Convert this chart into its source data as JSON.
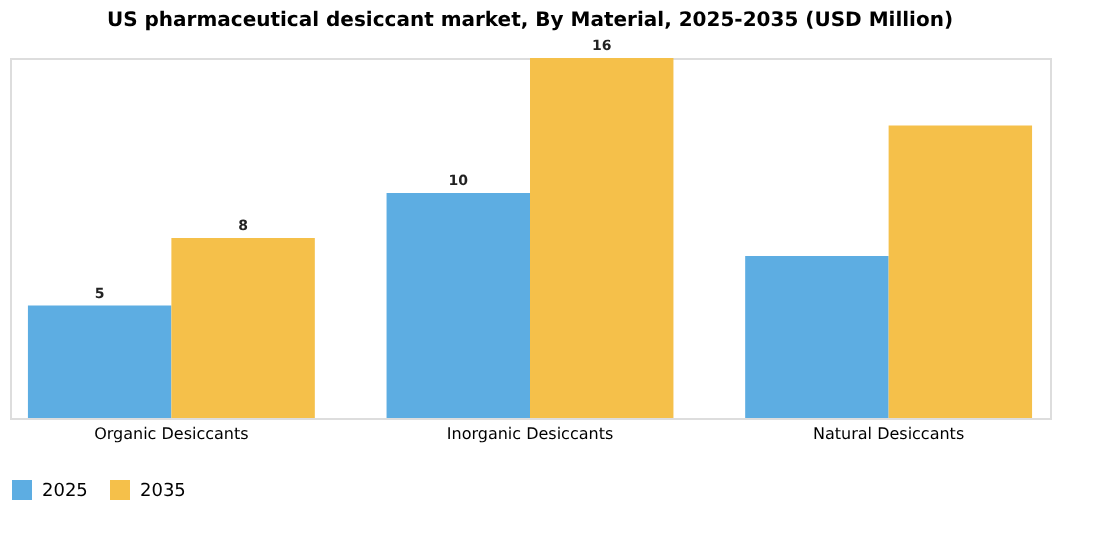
{
  "chart_data": {
    "type": "bar",
    "title": "US pharmaceutical desiccant market, By Material, 2025-2035 (USD Million)",
    "categories": [
      "Organic Desiccants",
      "Inorganic Desiccants",
      "Natural Desiccants"
    ],
    "series": [
      {
        "name": "2025",
        "color": "#5dade2",
        "values": [
          5,
          10,
          7.2
        ],
        "value_labels": [
          "5",
          "10",
          null
        ]
      },
      {
        "name": "2035",
        "color": "#f5c04a",
        "values": [
          8,
          16,
          13.0
        ],
        "value_labels": [
          "8",
          "16",
          null
        ]
      }
    ],
    "legend": "bottom",
    "grid": false
  }
}
